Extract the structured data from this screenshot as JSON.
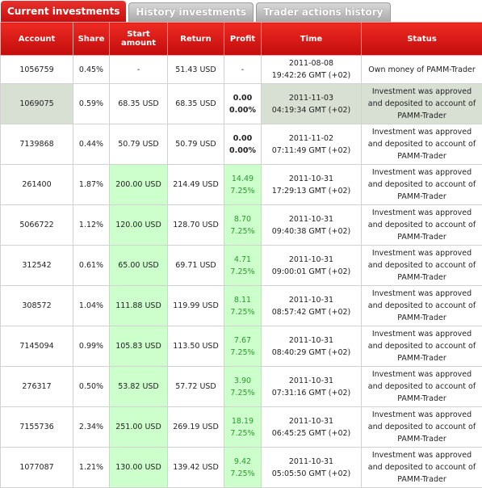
{
  "tabs": [
    "Current investments",
    "History investments",
    "Trader actions history"
  ],
  "table": {
    "headers": [
      "Account",
      "Share",
      "Start amount",
      "Return",
      "Profit",
      "Time",
      "Status"
    ],
    "rows": [
      [
        "1056759",
        "0.45%",
        "-",
        "51.43 USD",
        [
          "-"
        ],
        [
          "2011-08-08",
          "19:42:26 GMT (+02)"
        ],
        "Own money of PAMM-Trader"
      ],
      [
        "1069075",
        "0.59%",
        "68.35 USD",
        "68.35 USD",
        [
          "0.00",
          "0.00%"
        ],
        [
          "2011-11-03",
          "04:19:34 GMT (+02)"
        ],
        "Investment was approved and deposited to account of PAMM-Trader"
      ],
      [
        "7139868",
        "0.44%",
        "50.79 USD",
        "50.79 USD",
        [
          "0.00",
          "0.00%"
        ],
        [
          "2011-11-02",
          "07:11:49 GMT (+02)"
        ],
        "Investment was approved and deposited to account of PAMM-Trader"
      ],
      [
        "261400",
        "1.87%",
        "200.00 USD",
        "214.49 USD",
        [
          "14.49",
          "7.25%"
        ],
        [
          "2011-10-31",
          "17:29:13 GMT (+02)"
        ],
        "Investment was approved and deposited to account of PAMM-Trader"
      ],
      [
        "5066722",
        "1.12%",
        "120.00 USD",
        "128.70 USD",
        [
          "8.70",
          "7.25%"
        ],
        [
          "2011-10-31",
          "09:40:38 GMT (+02)"
        ],
        "Investment was approved and deposited to account of PAMM-Trader"
      ],
      [
        "312542",
        "0.61%",
        "65.00 USD",
        "69.71 USD",
        [
          "4.71",
          "7.25%"
        ],
        [
          "2011-10-31",
          "09:00:01 GMT (+02)"
        ],
        "Investment was approved and deposited to account of PAMM-Trader"
      ],
      [
        "308572",
        "1.04%",
        "111.88 USD",
        "119.99 USD",
        [
          "8.11",
          "7.25%"
        ],
        [
          "2011-10-31",
          "08:57:42 GMT (+02)"
        ],
        "Investment was approved and deposited to account of PAMM-Trader"
      ],
      [
        "7145094",
        "0.99%",
        "105.83 USD",
        "113.50 USD",
        [
          "7.67",
          "7.25%"
        ],
        [
          "2011-10-31",
          "08:40:29 GMT (+02)"
        ],
        "Investment was approved and deposited to account of PAMM-Trader"
      ],
      [
        "276317",
        "0.50%",
        "53.82 USD",
        "57.72 USD",
        [
          "3.90",
          "7.25%"
        ],
        [
          "2011-10-31",
          "07:31:16 GMT (+02)"
        ],
        "Investment was approved and deposited to account of PAMM-Trader"
      ],
      [
        "7155736",
        "2.34%",
        "251.00 USD",
        "269.19 USD",
        [
          "18.19",
          "7.25%"
        ],
        [
          "2011-10-31",
          "06:45:25 GMT (+02)"
        ],
        "Investment was approved and deposited to account of PAMM-Trader"
      ],
      [
        "1077087",
        "1.21%",
        "130.00 USD",
        "139.42 USD",
        [
          "9.42",
          "7.25%"
        ],
        [
          "2011-10-31",
          "05:05:50 GMT (+02)"
        ],
        "Investment was approved and deposited to account of PAMM-Trader"
      ]
    ]
  }
}
